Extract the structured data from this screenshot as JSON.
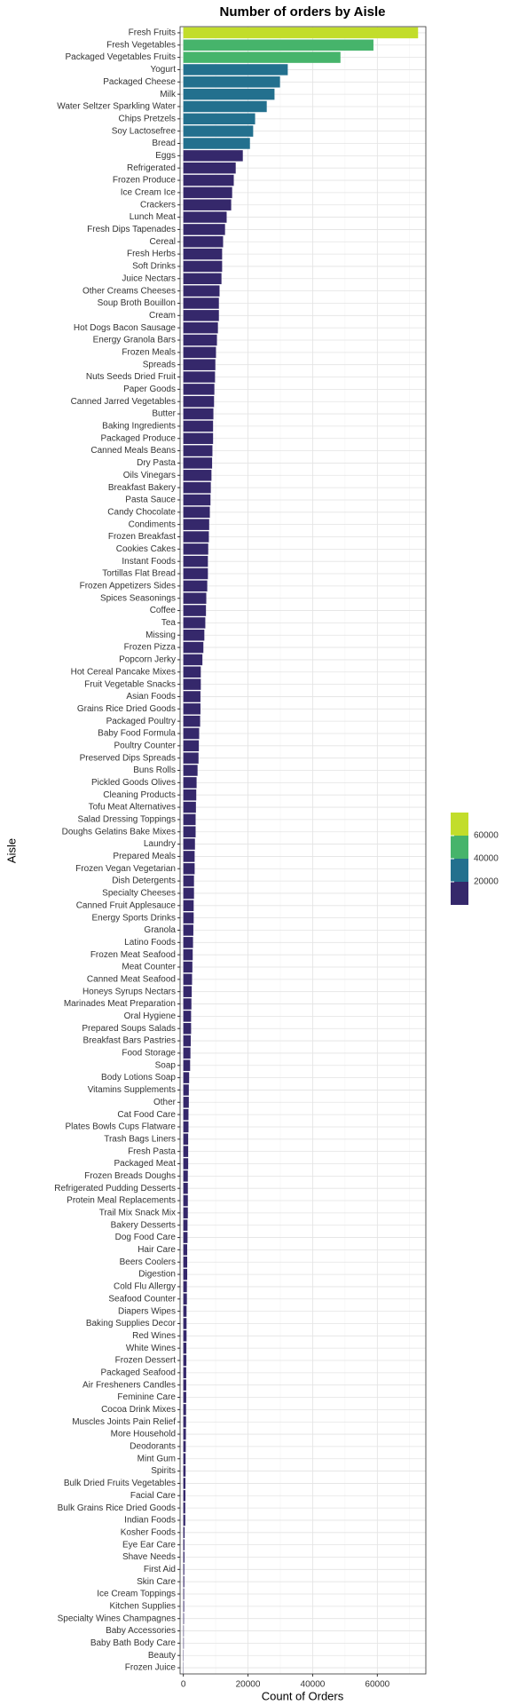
{
  "chart_data": {
    "type": "barh",
    "title": "Number of orders by Aisle",
    "xlabel": "Count of Orders",
    "ylabel": "Aisle",
    "categories": [
      "Fresh Fruits",
      "Fresh Vegetables",
      "Packaged Vegetables Fruits",
      "Yogurt",
      "Packaged Cheese",
      "Milk",
      "Water Seltzer Sparkling Water",
      "Chips Pretzels",
      "Soy Lactosefree",
      "Bread",
      "Eggs",
      "Refrigerated",
      "Frozen Produce",
      "Ice Cream Ice",
      "Crackers",
      "Lunch Meat",
      "Fresh Dips Tapenades",
      "Cereal",
      "Fresh Herbs",
      "Soft Drinks",
      "Juice Nectars",
      "Other Creams Cheeses",
      "Soup Broth Bouillon",
      "Cream",
      "Hot Dogs Bacon Sausage",
      "Energy Granola Bars",
      "Frozen Meals",
      "Spreads",
      "Nuts Seeds Dried Fruit",
      "Paper Goods",
      "Canned Jarred Vegetables",
      "Butter",
      "Baking Ingredients",
      "Packaged Produce",
      "Canned Meals Beans",
      "Dry Pasta",
      "Oils Vinegars",
      "Breakfast Bakery",
      "Pasta Sauce",
      "Candy Chocolate",
      "Condiments",
      "Frozen Breakfast",
      "Cookies Cakes",
      "Instant Foods",
      "Tortillas Flat Bread",
      "Frozen Appetizers Sides",
      "Spices Seasonings",
      "Coffee",
      "Tea",
      "Missing",
      "Frozen Pizza",
      "Popcorn Jerky",
      "Hot Cereal Pancake Mixes",
      "Fruit Vegetable Snacks",
      "Asian Foods",
      "Grains Rice Dried Goods",
      "Packaged Poultry",
      "Baby Food Formula",
      "Poultry Counter",
      "Preserved Dips Spreads",
      "Buns Rolls",
      "Pickled Goods Olives",
      "Cleaning Products",
      "Tofu Meat Alternatives",
      "Salad Dressing Toppings",
      "Doughs Gelatins Bake Mixes",
      "Laundry",
      "Prepared Meals",
      "Frozen Vegan Vegetarian",
      "Dish Detergents",
      "Specialty Cheeses",
      "Canned Fruit Applesauce",
      "Energy Sports Drinks",
      "Granola",
      "Latino Foods",
      "Frozen Meat Seafood",
      "Meat Counter",
      "Canned Meat Seafood",
      "Honeys Syrups Nectars",
      "Marinades Meat Preparation",
      "Oral Hygiene",
      "Prepared Soups Salads",
      "Breakfast Bars Pastries",
      "Food Storage",
      "Soap",
      "Body Lotions Soap",
      "Vitamins Supplements",
      "Other",
      "Cat Food Care",
      "Plates Bowls Cups Flatware",
      "Trash Bags Liners",
      "Fresh Pasta",
      "Packaged Meat",
      "Frozen Breads Doughs",
      "Refrigerated Pudding Desserts",
      "Protein Meal Replacements",
      "Trail Mix Snack Mix",
      "Bakery Desserts",
      "Dog Food Care",
      "Hair Care",
      "Beers Coolers",
      "Digestion",
      "Cold Flu Allergy",
      "Seafood Counter",
      "Diapers Wipes",
      "Baking Supplies Decor",
      "Red Wines",
      "White Wines",
      "Frozen Dessert",
      "Packaged Seafood",
      "Air Fresheners Candles",
      "Feminine Care",
      "Cocoa Drink Mixes",
      "Muscles Joints Pain Relief",
      "More Household",
      "Deodorants",
      "Mint Gum",
      "Spirits",
      "Bulk Dried Fruits Vegetables",
      "Facial Care",
      "Bulk Grains Rice Dried Goods",
      "Indian Foods",
      "Kosher Foods",
      "Eye Ear Care",
      "Shave Needs",
      "First Aid",
      "Skin Care",
      "Ice Cream Toppings",
      "Kitchen Supplies",
      "Specialty Wines Champagnes",
      "Baby Accessories",
      "Baby Bath Body Care",
      "Beauty",
      "Frozen Juice"
    ],
    "values": [
      72600,
      58800,
      48600,
      32300,
      29900,
      28200,
      25800,
      22200,
      21600,
      20600,
      18400,
      16200,
      15600,
      15100,
      14800,
      13400,
      12900,
      12300,
      12000,
      12000,
      11800,
      11200,
      11000,
      11000,
      10700,
      10400,
      10100,
      9900,
      9800,
      9600,
      9500,
      9300,
      9200,
      9200,
      9000,
      8900,
      8700,
      8500,
      8400,
      8200,
      8000,
      7900,
      7700,
      7600,
      7600,
      7400,
      7100,
      7000,
      6800,
      6500,
      6200,
      5900,
      5400,
      5400,
      5300,
      5300,
      5200,
      4900,
      4800,
      4700,
      4400,
      4100,
      4000,
      3900,
      3800,
      3800,
      3600,
      3500,
      3500,
      3300,
      3300,
      3200,
      3200,
      3100,
      3000,
      2900,
      2800,
      2700,
      2600,
      2500,
      2400,
      2400,
      2300,
      2200,
      2100,
      1800,
      1700,
      1700,
      1600,
      1600,
      1500,
      1500,
      1500,
      1400,
      1400,
      1400,
      1400,
      1300,
      1300,
      1200,
      1200,
      1200,
      1100,
      1100,
      1000,
      1000,
      1000,
      950,
      950,
      900,
      900,
      900,
      850,
      850,
      800,
      750,
      700,
      700,
      650,
      650,
      600,
      600,
      400,
      350,
      350,
      300,
      300,
      250,
      250,
      200,
      150,
      150,
      100,
      80
    ],
    "xlim": [
      -1000,
      75000
    ],
    "xticks": [
      0,
      20000,
      40000,
      60000
    ],
    "grid": true,
    "legend": {
      "position": "right",
      "ticks": [
        20000,
        40000,
        60000
      ],
      "colors": [
        "#35286b",
        "#23708e",
        "#46b46b",
        "#c2dd2b"
      ]
    }
  }
}
